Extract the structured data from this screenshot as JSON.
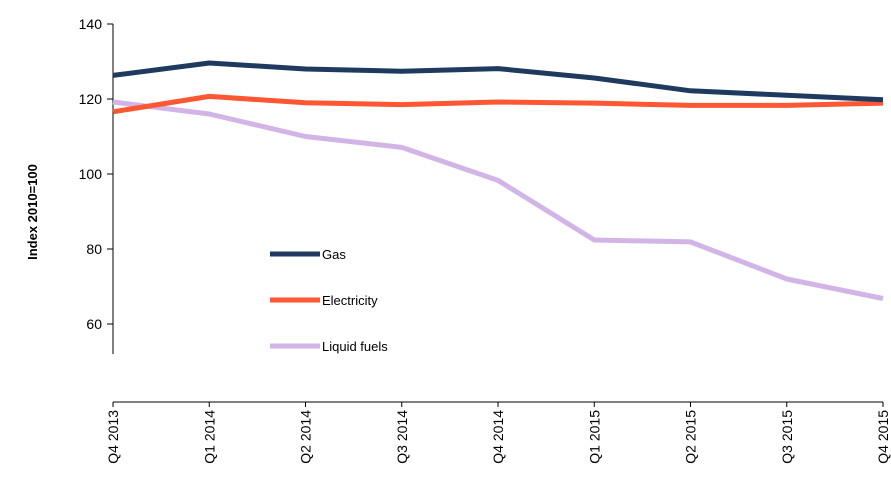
{
  "chart_data": {
    "type": "line",
    "title": "",
    "xlabel": "",
    "ylabel": "Index 2010=100",
    "categories": [
      "Q4 2013",
      "Q1 2014",
      "Q2 2014",
      "Q3 2014",
      "Q4 2014",
      "Q1 2015",
      "Q2 2015",
      "Q3 2015",
      "Q4 2015"
    ],
    "ylim": [
      52,
      140
    ],
    "yticks": [
      60,
      80,
      100,
      120,
      140
    ],
    "grid": false,
    "legend_position": "center-left",
    "series": [
      {
        "name": "Gas",
        "color": "#1f3a5f",
        "values": [
          126.3,
          129.6,
          128.0,
          127.4,
          128.1,
          125.6,
          122.2,
          121.0,
          119.8
        ]
      },
      {
        "name": "Electricity",
        "color": "#ff5733",
        "values": [
          116.6,
          120.7,
          119.0,
          118.5,
          119.2,
          118.9,
          118.3,
          118.3,
          118.9
        ]
      },
      {
        "name": "Liquid fuels",
        "color": "#d2b5e6",
        "values": [
          119.2,
          116.0,
          110.0,
          107.1,
          98.3,
          82.4,
          81.9,
          72.0,
          66.8
        ]
      }
    ]
  }
}
